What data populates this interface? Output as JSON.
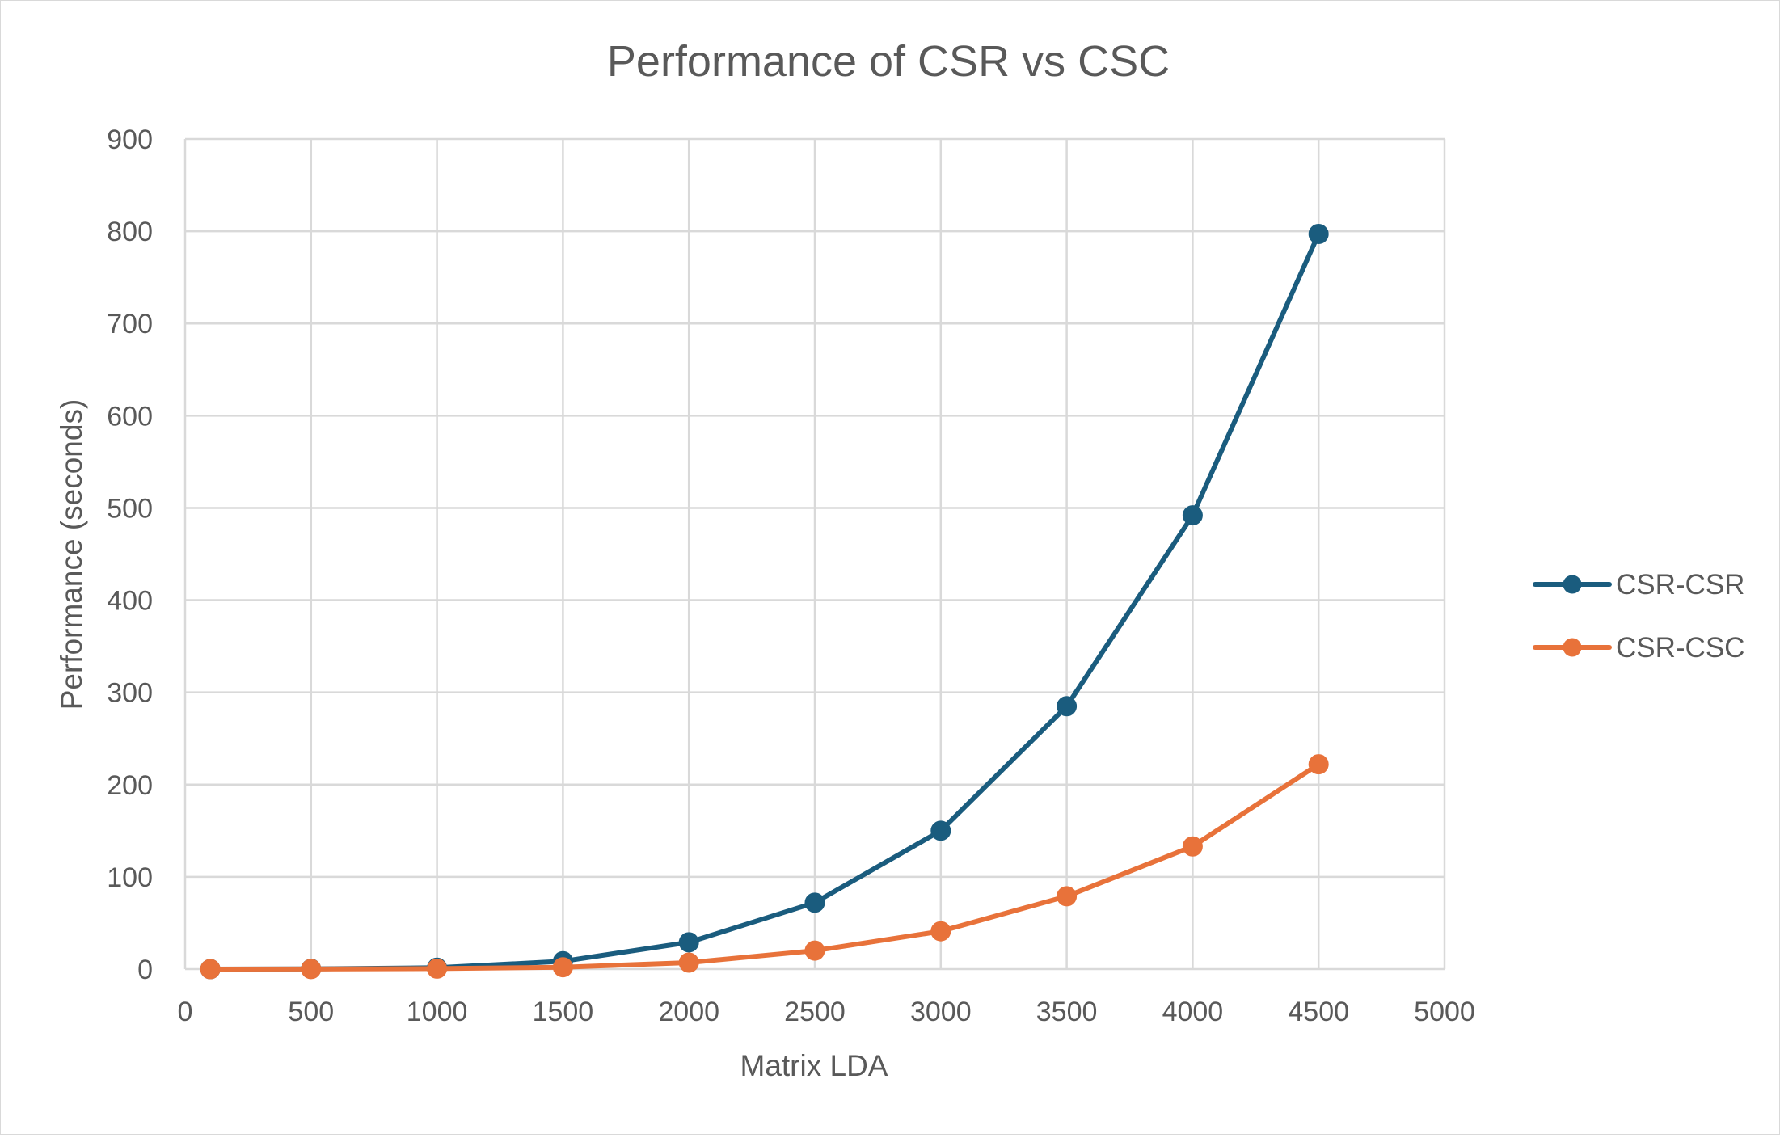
{
  "chart_data": {
    "type": "scatter",
    "title": "Performance of CSR vs CSC",
    "xlabel": "Matrix LDA",
    "ylabel": "Performance (seconds)",
    "xlim": [
      0,
      5000
    ],
    "ylim": [
      0,
      900
    ],
    "x_ticks": [
      "0",
      "500",
      "1000",
      "1500",
      "2000",
      "2500",
      "3000",
      "3500",
      "4000",
      "4500",
      "5000"
    ],
    "y_ticks": [
      "0",
      "100",
      "200",
      "300",
      "400",
      "500",
      "600",
      "700",
      "800",
      "900"
    ],
    "grid": true,
    "legend": "right",
    "series": [
      {
        "name": "CSR-CSR",
        "color": "#1a5c7e",
        "x": [
          100,
          500,
          1000,
          1500,
          2000,
          2500,
          3000,
          3500,
          4000,
          4500
        ],
        "y": [
          0,
          0.3,
          1.5,
          8.5,
          29,
          72,
          150,
          285,
          492,
          797
        ]
      },
      {
        "name": "CSR-CSC",
        "color": "#e8723a",
        "x": [
          100,
          500,
          1000,
          1500,
          2000,
          2500,
          3000,
          3500,
          4000,
          4500
        ],
        "y": [
          0,
          0.1,
          0.5,
          2,
          7,
          20,
          41,
          79,
          133,
          222
        ]
      }
    ]
  }
}
